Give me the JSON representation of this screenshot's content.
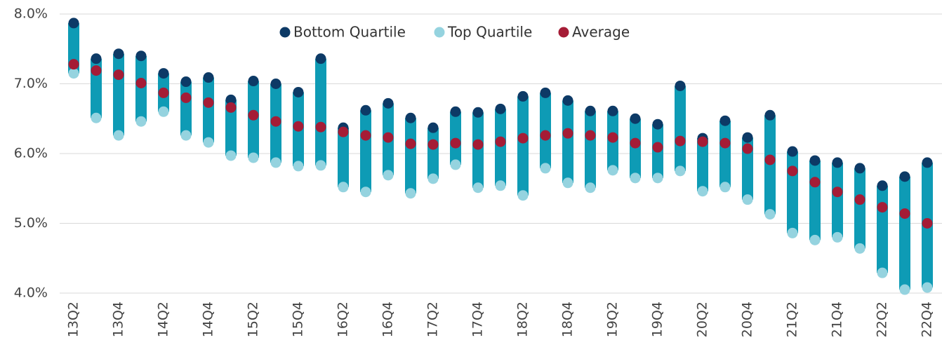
{
  "chart_data": {
    "type": "dumbbell",
    "categories": [
      "13Q2",
      null,
      "13Q4",
      null,
      "14Q2",
      null,
      "14Q4",
      null,
      "15Q2",
      null,
      "15Q4",
      null,
      "16Q2",
      null,
      "16Q4",
      null,
      "17Q2",
      null,
      "17Q4",
      null,
      "18Q2",
      null,
      "18Q4",
      null,
      "19Q2",
      null,
      "19Q4",
      null,
      "20Q2",
      null,
      "20Q4",
      null,
      "21Q2",
      null,
      "21Q4",
      null,
      "22Q2",
      null,
      "22Q4"
    ],
    "series": [
      {
        "name": "Bottom Quartile",
        "color": "#0d3a66",
        "values": [
          7.87,
          7.36,
          7.43,
          7.4,
          7.15,
          7.03,
          7.09,
          6.77,
          7.04,
          7.0,
          6.88,
          7.36,
          6.37,
          6.62,
          6.72,
          6.51,
          6.37,
          6.6,
          6.59,
          6.64,
          6.82,
          6.87,
          6.76,
          6.61,
          6.61,
          6.5,
          6.42,
          6.97,
          6.22,
          6.47,
          6.23,
          6.55,
          6.03,
          5.9,
          5.87,
          5.79,
          5.54,
          5.67,
          5.87
        ]
      },
      {
        "name": "Top Quartile",
        "color": "#95d3df",
        "values": [
          7.15,
          6.51,
          6.26,
          6.46,
          6.6,
          6.26,
          6.16,
          5.97,
          5.94,
          5.87,
          5.82,
          5.83,
          5.52,
          5.45,
          5.69,
          5.43,
          5.64,
          5.84,
          5.51,
          5.54,
          5.4,
          5.79,
          5.58,
          5.51,
          5.76,
          5.65,
          5.65,
          5.75,
          5.46,
          5.52,
          5.34,
          5.13,
          4.86,
          4.76,
          4.8,
          4.64,
          4.29,
          4.05,
          4.08
        ]
      },
      {
        "name": "Average",
        "color": "#a51c36",
        "values": [
          7.28,
          7.19,
          7.13,
          7.01,
          6.87,
          6.8,
          6.73,
          6.66,
          6.55,
          6.46,
          6.39,
          6.38,
          6.31,
          6.26,
          6.23,
          6.14,
          6.13,
          6.15,
          6.13,
          6.17,
          6.22,
          6.26,
          6.29,
          6.26,
          6.23,
          6.15,
          6.09,
          6.18,
          6.17,
          6.15,
          6.07,
          5.91,
          5.75,
          5.59,
          5.45,
          5.34,
          5.23,
          5.14,
          5.0
        ]
      }
    ],
    "range_color": "#0e9bb5",
    "ylim": [
      4,
      8
    ],
    "yticks": [
      {
        "value": 4,
        "label": "4.0%"
      },
      {
        "value": 5,
        "label": "5.0%"
      },
      {
        "value": 6,
        "label": "6.0%"
      },
      {
        "value": 7,
        "label": "7.0%"
      },
      {
        "value": 8,
        "label": "8.0%"
      }
    ],
    "grid": true
  }
}
